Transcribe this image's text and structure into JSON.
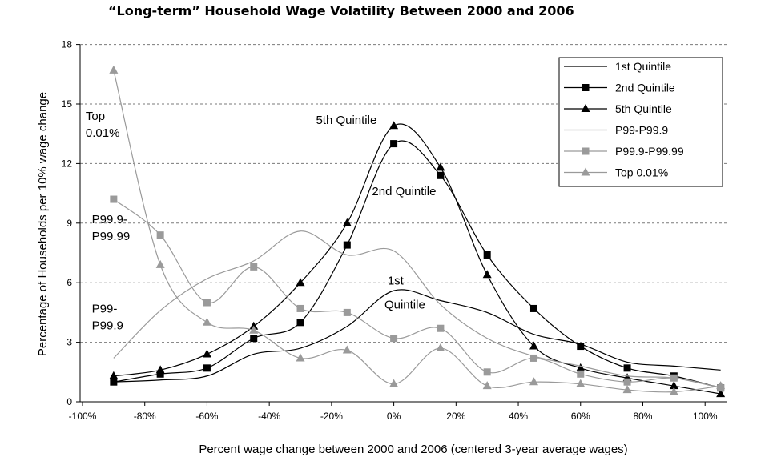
{
  "chart_data": {
    "type": "line",
    "title": "“Long-term” Household Wage Volatility Between 2000 and 2006",
    "xlabel": "Percent wage change between 2000 and 2006 (centered 3-year average wages)",
    "ylabel": "Percentage of Households per 10% wage change",
    "xlim": [
      -100,
      105
    ],
    "ylim": [
      0,
      18
    ],
    "x_ticks": [
      -100,
      -80,
      -60,
      -40,
      -20,
      0,
      20,
      40,
      60,
      80,
      100
    ],
    "x_tick_labels": [
      "-100%",
      "-80%",
      "-60%",
      "-40%",
      "-20%",
      "0%",
      "20%",
      "40%",
      "60%",
      "80%",
      "100%"
    ],
    "y_ticks": [
      0,
      3,
      6,
      9,
      12,
      15,
      18
    ],
    "y_tick_labels": [
      "0",
      "3",
      "6",
      "9",
      "12",
      "15",
      "18"
    ],
    "grid": "horizontal dashed",
    "legend": "top-right",
    "series": [
      {
        "name": "1st Quintile",
        "color": "#000000",
        "width": 1.2,
        "marker": "none",
        "x": [
          -90,
          -75,
          -60,
          -45,
          -30,
          -15,
          0,
          15,
          30,
          45,
          60,
          75,
          90,
          105
        ],
        "y": [
          1.0,
          1.1,
          1.3,
          2.4,
          2.7,
          3.8,
          5.6,
          5.1,
          4.5,
          3.4,
          2.9,
          2.0,
          1.8,
          1.6
        ]
      },
      {
        "name": "2nd Quintile",
        "color": "#000000",
        "width": 1.2,
        "marker": "square",
        "x": [
          -90,
          -75,
          -60,
          -45,
          -30,
          -15,
          0,
          15,
          30,
          45,
          60,
          75,
          90,
          105
        ],
        "y": [
          1.0,
          1.4,
          1.7,
          3.2,
          4.0,
          7.9,
          13.0,
          11.4,
          7.4,
          4.7,
          2.8,
          1.7,
          1.3,
          0.7
        ]
      },
      {
        "name": "5th Quintile",
        "color": "#000000",
        "width": 1.2,
        "marker": "triangle",
        "x": [
          -90,
          -75,
          -60,
          -45,
          -30,
          -15,
          0,
          15,
          30,
          45,
          60,
          75,
          90,
          105
        ],
        "y": [
          1.3,
          1.6,
          2.4,
          3.8,
          6.0,
          9.0,
          13.9,
          11.8,
          6.4,
          2.8,
          1.7,
          1.2,
          0.8,
          0.4
        ]
      },
      {
        "name": "P99-P99.9",
        "color": "#9a9a9a",
        "width": 1.2,
        "marker": "none",
        "x": [
          -90,
          -75,
          -60,
          -45,
          -30,
          -15,
          0,
          15,
          30,
          45,
          60,
          75,
          90,
          105
        ],
        "y": [
          2.2,
          4.6,
          6.2,
          7.1,
          8.6,
          7.4,
          7.6,
          4.9,
          3.2,
          2.3,
          1.8,
          1.3,
          1.2,
          0.7
        ]
      },
      {
        "name": "P99.9-P99.99",
        "color": "#9a9a9a",
        "width": 1.2,
        "marker": "square",
        "x": [
          -90,
          -75,
          -60,
          -45,
          -30,
          -15,
          0,
          15,
          30,
          45,
          60,
          75,
          90,
          105
        ],
        "y": [
          10.2,
          8.4,
          5.0,
          6.8,
          4.7,
          4.5,
          3.2,
          3.7,
          1.5,
          2.2,
          1.4,
          1.0,
          1.2,
          0.7
        ]
      },
      {
        "name": "Top 0.01%",
        "color": "#9a9a9a",
        "width": 1.2,
        "marker": "triangle",
        "x": [
          -90,
          -75,
          -60,
          -45,
          -30,
          -15,
          0,
          15,
          30,
          45,
          60,
          75,
          90,
          105
        ],
        "y": [
          16.7,
          6.9,
          4.0,
          3.6,
          2.2,
          2.6,
          0.9,
          2.7,
          0.8,
          1.0,
          0.9,
          0.6,
          0.5,
          0.8
        ]
      }
    ],
    "annotations": [
      {
        "lines": [
          "Top",
          "0.01%"
        ],
        "x": -99,
        "y": 14.2
      },
      {
        "lines": [
          "5th Quintile"
        ],
        "x": -25,
        "y": 14.0
      },
      {
        "lines": [
          "2nd Quintile"
        ],
        "x": -7,
        "y": 10.4
      },
      {
        "lines": [
          "P99.9-",
          "P99.99"
        ],
        "x": -97,
        "y": 9.0
      },
      {
        "lines": [
          "1st"
        ],
        "x": -2,
        "y": 5.9
      },
      {
        "lines": [
          "Quintile"
        ],
        "x": -3,
        "y": 4.7
      },
      {
        "lines": [
          "P99-",
          "P99.9"
        ],
        "x": -97,
        "y": 4.5
      }
    ]
  }
}
